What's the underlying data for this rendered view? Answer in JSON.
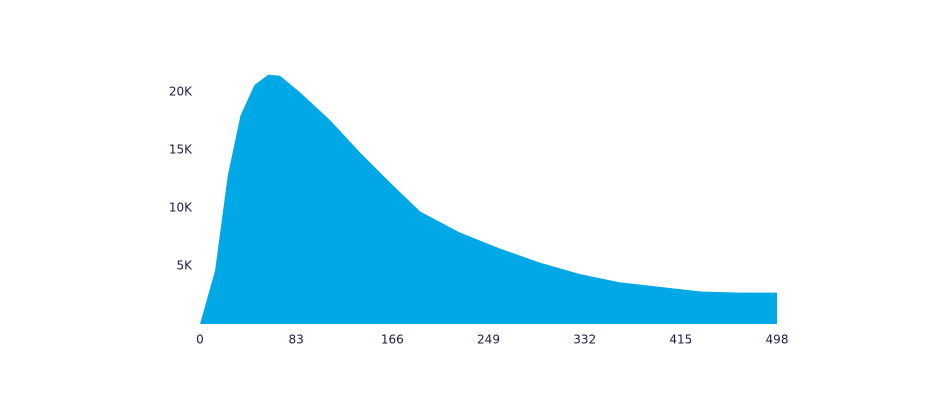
{
  "chart_data": {
    "type": "area",
    "color": "#00a8e6",
    "x": [
      0,
      13,
      24,
      35,
      47,
      59,
      69,
      86,
      112,
      138,
      164,
      190,
      224,
      259,
      293,
      328,
      362,
      397,
      432,
      466,
      498
    ],
    "values": [
      0,
      4600,
      12800,
      18000,
      20600,
      21500,
      21400,
      20000,
      17600,
      14800,
      12200,
      9700,
      7900,
      6500,
      5300,
      4300,
      3600,
      3200,
      2800,
      2700,
      2700
    ],
    "xlim": [
      0,
      498
    ],
    "xticks": [
      0,
      83,
      166,
      249,
      332,
      415,
      498
    ],
    "ylim": [
      0,
      24000
    ],
    "yticks": [
      {
        "value": 5000,
        "label": "5K"
      },
      {
        "value": 10000,
        "label": "10K"
      },
      {
        "value": 15000,
        "label": "15K"
      },
      {
        "value": 20000,
        "label": "20K"
      }
    ]
  }
}
